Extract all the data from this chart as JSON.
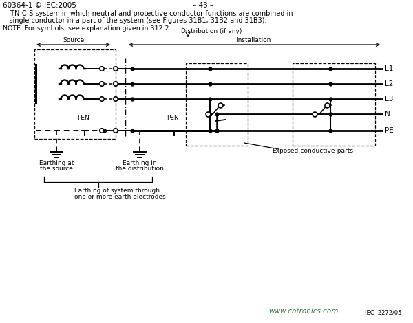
{
  "header_left": "60364-1 © IEC:2005",
  "header_center": "– 43 –",
  "desc_line1": "–  TN-C-S system in which neutral and protective conductor functions are combined in",
  "desc_line2": "   single conductor in a part of the system (see Figures 31B1, 31B2 and 31B3).",
  "note": "NOTE  For symbols, see explanation given in 312.2.",
  "label_distribution": "Distribution (if any)",
  "label_source": "Source",
  "label_installation": "Installation",
  "label_L1": "L1",
  "label_L2": "L2",
  "label_L3": "L3",
  "label_N": "N",
  "label_PE": "PE",
  "label_PEN1": "PEN",
  "label_PEN2": "PEN",
  "label_earthing_source1": "Earthing at",
  "label_earthing_source2": "the source",
  "label_earthing_distrib1": "Earthing in",
  "label_earthing_distrib2": "the distribution",
  "label_earthing_system1": "Earthing of system through",
  "label_earthing_system2": "one or more earth electrodes",
  "label_exposed": "Exposed-conductive-parts",
  "label_watermark": "www.cntronics.com",
  "label_iec": "IEC  2272/05",
  "bg_color": "#ffffff",
  "line_color": "#000000",
  "text_color": "#000000",
  "watermark_color": "#3a7a3a"
}
